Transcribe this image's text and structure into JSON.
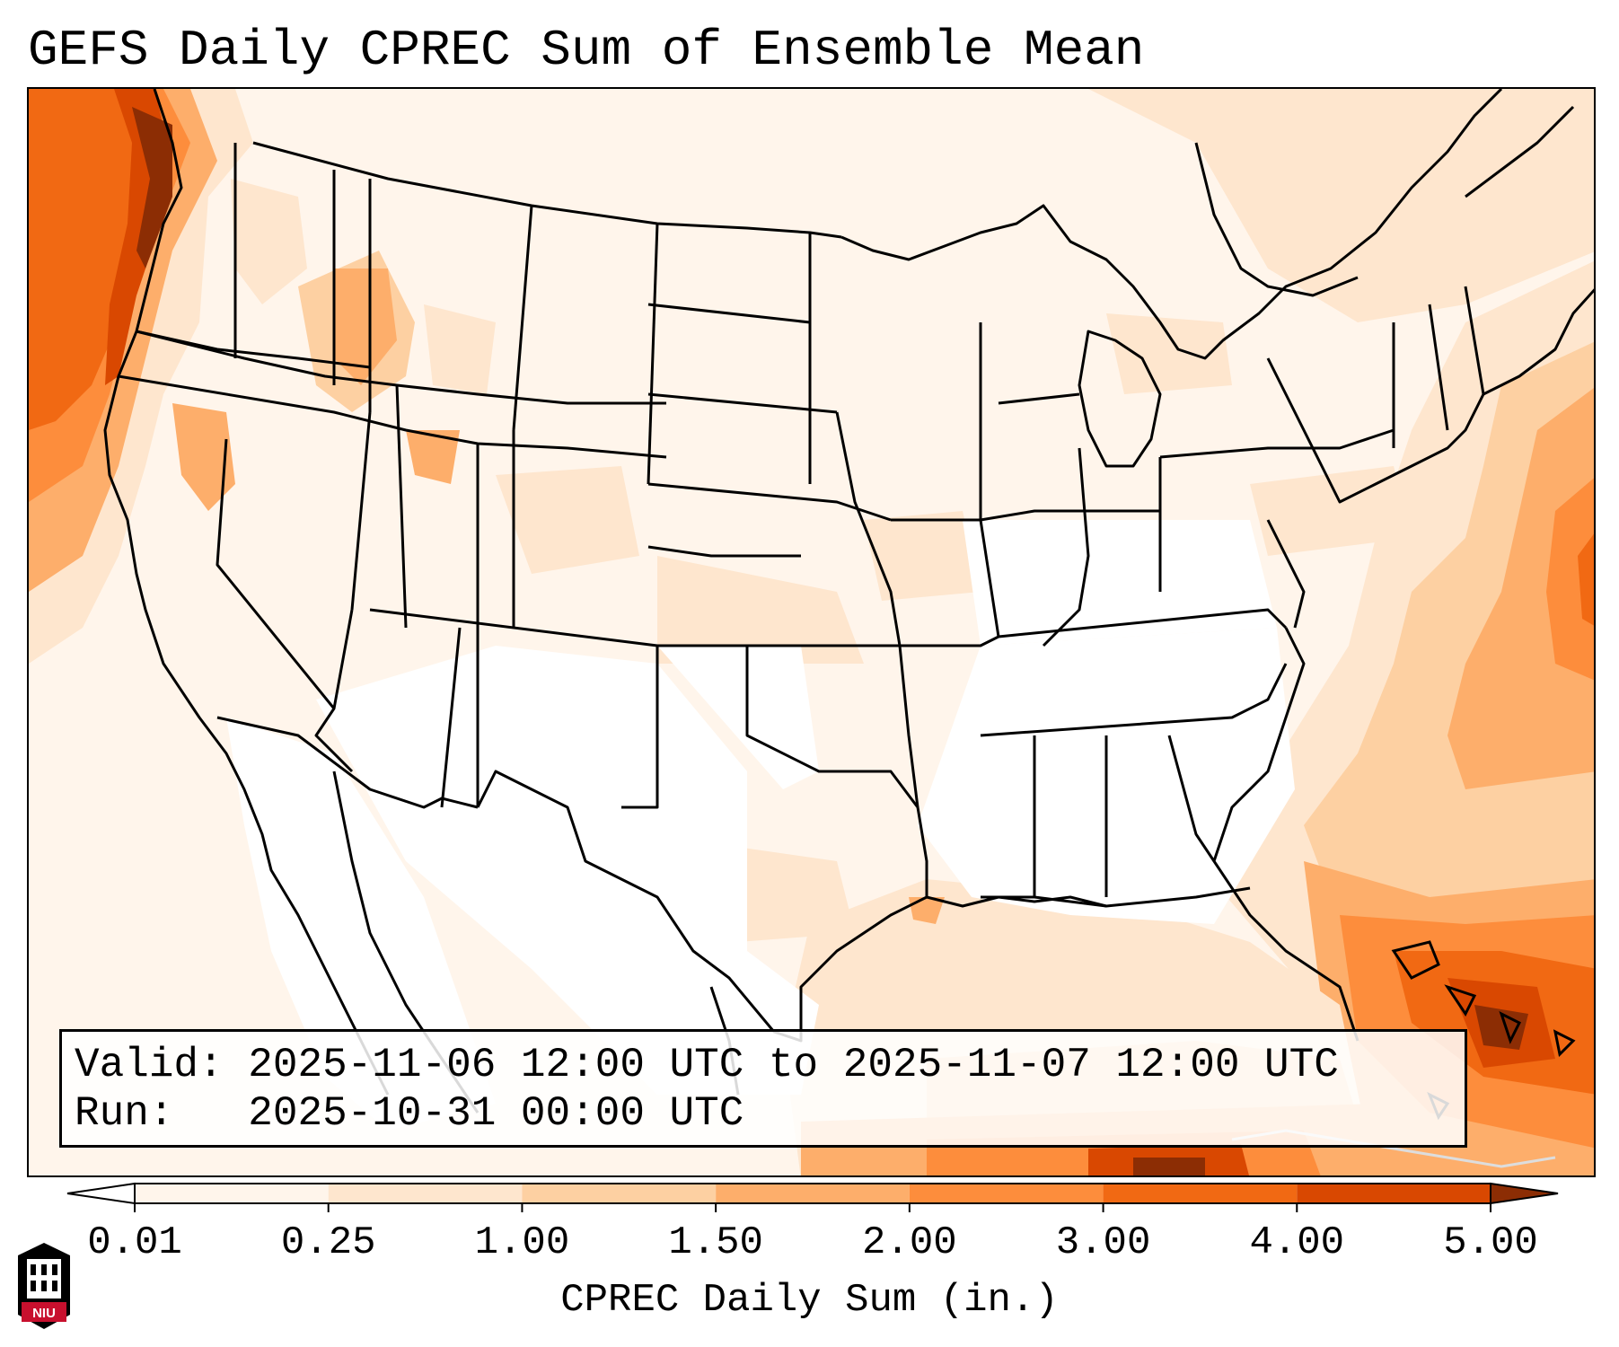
{
  "title": "GEFS Daily CPREC Sum of Ensemble Mean",
  "info": {
    "valid_label": "Valid:",
    "valid_value": "2025-11-06 12:00 UTC to 2025-11-07 12:00 UTC",
    "run_label": "Run:",
    "run_value": "2025-10-31 00:00 UTC"
  },
  "colorbar": {
    "label": "CPREC Daily Sum (in.)",
    "ticks": [
      "0.01",
      "0.25",
      "1.00",
      "1.50",
      "2.00",
      "3.00",
      "4.00",
      "5.00"
    ],
    "colors": [
      "#fff5eb",
      "#fee6ce",
      "#fdd0a2",
      "#fdae6b",
      "#fd8d3c",
      "#f16913",
      "#d94801",
      "#8c2d04"
    ],
    "extend": "both"
  },
  "colors": {
    "light": "#fff5eb",
    "pale": "#fee6ce",
    "tan": "#fdd0a2",
    "light_orange": "#fdae6b",
    "orange": "#fd8d3c",
    "dark_orange": "#f16913",
    "red_orange": "#d94801",
    "brown": "#8c2d04"
  },
  "logo": {
    "text": "NIU",
    "icon": "niu-building-icon"
  }
}
